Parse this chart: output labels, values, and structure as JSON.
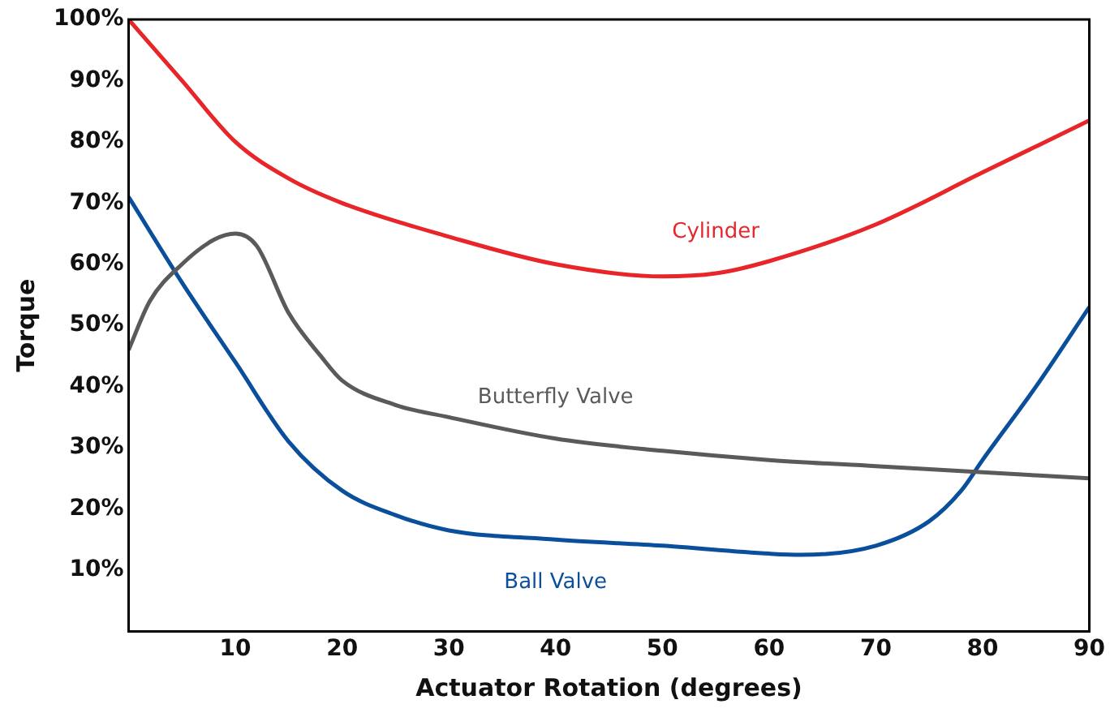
{
  "chart_data": {
    "type": "line",
    "xlabel": "Actuator Rotation (degrees)",
    "ylabel": "Torque",
    "xlim": [
      0,
      90
    ],
    "xticks": [
      10,
      20,
      30,
      40,
      50,
      60,
      70,
      80,
      90
    ],
    "ylim": [
      0,
      100
    ],
    "yticks": [
      {
        "value": 10,
        "label": "10%"
      },
      {
        "value": 20,
        "label": "20%"
      },
      {
        "value": 30,
        "label": "30%"
      },
      {
        "value": 40,
        "label": "40%"
      },
      {
        "value": 50,
        "label": "50%"
      },
      {
        "value": 60,
        "label": "60%"
      },
      {
        "value": 70,
        "label": "70%"
      },
      {
        "value": 80,
        "label": "80%"
      },
      {
        "value": 90,
        "label": "90%"
      },
      {
        "value": 100,
        "label": "100%"
      }
    ],
    "grid": false,
    "legend": false,
    "marker": "none",
    "line_style": "solid",
    "series": [
      {
        "name": "Cylinder",
        "color": "#e8262a",
        "x": [
          0,
          5,
          10,
          15,
          20,
          30,
          40,
          50,
          55,
          60,
          70,
          80,
          90
        ],
        "values": [
          100,
          90,
          80,
          74,
          70,
          64.5,
          60,
          58,
          58.5,
          60.5,
          66.5,
          75,
          83.5
        ]
      },
      {
        "name": "Butterfly Valve",
        "color": "#5a5a5a",
        "x": [
          0,
          2,
          5,
          8,
          10,
          12,
          15,
          18,
          20,
          25,
          30,
          40,
          50,
          60,
          70,
          80,
          90
        ],
        "values": [
          46,
          54,
          60,
          64,
          65,
          63,
          52,
          45,
          41,
          37,
          35,
          31.5,
          29.5,
          28,
          27,
          26,
          25
        ]
      },
      {
        "name": "Ball Valve",
        "color": "#0a4f9c",
        "x": [
          0,
          5,
          10,
          15,
          20,
          25,
          30,
          40,
          50,
          60,
          63,
          70,
          75,
          78,
          80,
          85,
          90
        ],
        "values": [
          71,
          57,
          44,
          31,
          23,
          19,
          16.5,
          15,
          14,
          12.7,
          12.5,
          14,
          18,
          23,
          28,
          40,
          53
        ]
      }
    ]
  }
}
